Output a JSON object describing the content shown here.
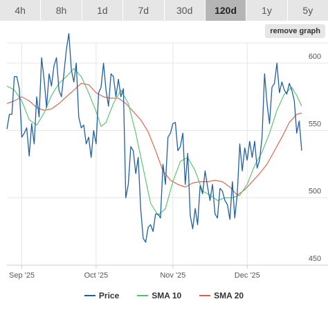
{
  "range_tabs": [
    {
      "label": "4h",
      "active": false
    },
    {
      "label": "8h",
      "active": false
    },
    {
      "label": "1d",
      "active": false
    },
    {
      "label": "7d",
      "active": false
    },
    {
      "label": "30d",
      "active": false
    },
    {
      "label": "120d",
      "active": true
    },
    {
      "label": "1y",
      "active": false
    },
    {
      "label": "5y",
      "active": false
    }
  ],
  "remove_graph_label": "remove graph",
  "chart_data": {
    "type": "line",
    "x_start": "2025-08-26",
    "x_end": "2025-12-23",
    "x_ticks": [
      {
        "date": "2025-09-01",
        "label": "Sep '25"
      },
      {
        "date": "2025-10-01",
        "label": "Oct '25"
      },
      {
        "date": "2025-11-01",
        "label": "Nov '25"
      },
      {
        "date": "2025-12-01",
        "label": "Dec '25"
      }
    ],
    "ylim": [
      450,
      615
    ],
    "y_ticks": [
      450,
      500,
      550,
      600
    ],
    "grid": true,
    "legend": "bottom",
    "series": [
      {
        "name": "Price",
        "color": "#1f5fa0",
        "points": [
          [
            "2025-08-26",
            551
          ],
          [
            "2025-08-27",
            562
          ],
          [
            "2025-08-28",
            562
          ],
          [
            "2025-08-29",
            590
          ],
          [
            "2025-08-30",
            590
          ],
          [
            "2025-08-31",
            581
          ],
          [
            "2025-09-01",
            545
          ],
          [
            "2025-09-02",
            548
          ],
          [
            "2025-09-03",
            552
          ],
          [
            "2025-09-04",
            531
          ],
          [
            "2025-09-05",
            555
          ],
          [
            "2025-09-06",
            540
          ],
          [
            "2025-09-07",
            575
          ],
          [
            "2025-09-08",
            560
          ],
          [
            "2025-09-09",
            604
          ],
          [
            "2025-09-10",
            588
          ],
          [
            "2025-09-11",
            567
          ],
          [
            "2025-09-12",
            592
          ],
          [
            "2025-09-13",
            583
          ],
          [
            "2025-09-14",
            598
          ],
          [
            "2025-09-15",
            604
          ],
          [
            "2025-09-16",
            580
          ],
          [
            "2025-09-17",
            575
          ],
          [
            "2025-09-18",
            592
          ],
          [
            "2025-09-19",
            610
          ],
          [
            "2025-09-20",
            622
          ],
          [
            "2025-09-21",
            595
          ],
          [
            "2025-09-22",
            586
          ],
          [
            "2025-09-23",
            600
          ],
          [
            "2025-09-24",
            560
          ],
          [
            "2025-09-25",
            552
          ],
          [
            "2025-09-26",
            554
          ],
          [
            "2025-09-27",
            540
          ],
          [
            "2025-09-28",
            545
          ],
          [
            "2025-09-29",
            530
          ],
          [
            "2025-09-30",
            550
          ],
          [
            "2025-10-01",
            540
          ],
          [
            "2025-10-02",
            578
          ],
          [
            "2025-10-03",
            582
          ],
          [
            "2025-10-04",
            600
          ],
          [
            "2025-10-05",
            580
          ],
          [
            "2025-10-06",
            568
          ],
          [
            "2025-10-07",
            592
          ],
          [
            "2025-10-08",
            590
          ],
          [
            "2025-10-09",
            575
          ],
          [
            "2025-10-10",
            588
          ],
          [
            "2025-10-11",
            575
          ],
          [
            "2025-10-12",
            581
          ],
          [
            "2025-10-13",
            500
          ],
          [
            "2025-10-14",
            510
          ],
          [
            "2025-10-15",
            538
          ],
          [
            "2025-10-16",
            535
          ],
          [
            "2025-10-17",
            518
          ],
          [
            "2025-10-18",
            530
          ],
          [
            "2025-10-19",
            492
          ],
          [
            "2025-10-20",
            470
          ],
          [
            "2025-10-21",
            467
          ],
          [
            "2025-10-22",
            478
          ],
          [
            "2025-10-23",
            480
          ],
          [
            "2025-10-24",
            475
          ],
          [
            "2025-10-25",
            488
          ],
          [
            "2025-10-26",
            488
          ],
          [
            "2025-10-27",
            485
          ],
          [
            "2025-10-28",
            525
          ],
          [
            "2025-10-29",
            510
          ],
          [
            "2025-10-30",
            545
          ],
          [
            "2025-10-31",
            548
          ],
          [
            "2025-11-01",
            555
          ],
          [
            "2025-11-02",
            556
          ],
          [
            "2025-11-03",
            535
          ],
          [
            "2025-11-04",
            538
          ],
          [
            "2025-11-05",
            548
          ],
          [
            "2025-11-06",
            510
          ],
          [
            "2025-11-07",
            533
          ],
          [
            "2025-11-08",
            487
          ],
          [
            "2025-11-09",
            477
          ],
          [
            "2025-11-10",
            492
          ],
          [
            "2025-11-11",
            480
          ],
          [
            "2025-11-12",
            509
          ],
          [
            "2025-11-13",
            503
          ],
          [
            "2025-11-14",
            520
          ],
          [
            "2025-11-15",
            508
          ],
          [
            "2025-11-16",
            498
          ],
          [
            "2025-11-17",
            510
          ],
          [
            "2025-11-18",
            488
          ],
          [
            "2025-11-19",
            485
          ],
          [
            "2025-11-20",
            507
          ],
          [
            "2025-11-21",
            505
          ],
          [
            "2025-11-22",
            498
          ],
          [
            "2025-11-23",
            495
          ],
          [
            "2025-11-24",
            484
          ],
          [
            "2025-11-25",
            512
          ],
          [
            "2025-11-26",
            485
          ],
          [
            "2025-11-27",
            503
          ],
          [
            "2025-11-28",
            540
          ],
          [
            "2025-11-29",
            520
          ],
          [
            "2025-11-30",
            537
          ],
          [
            "2025-12-01",
            528
          ],
          [
            "2025-12-02",
            542
          ],
          [
            "2025-12-03",
            530
          ],
          [
            "2025-12-04",
            542
          ],
          [
            "2025-12-05",
            522
          ],
          [
            "2025-12-06",
            528
          ],
          [
            "2025-12-07",
            545
          ],
          [
            "2025-12-08",
            592
          ],
          [
            "2025-12-09",
            570
          ],
          [
            "2025-12-10",
            555
          ],
          [
            "2025-12-11",
            582
          ],
          [
            "2025-12-12",
            585
          ],
          [
            "2025-12-13",
            600
          ],
          [
            "2025-12-14",
            578
          ],
          [
            "2025-12-15",
            586
          ],
          [
            "2025-12-16",
            580
          ],
          [
            "2025-12-17",
            577
          ],
          [
            "2025-12-18",
            585
          ],
          [
            "2025-12-19",
            580
          ],
          [
            "2025-12-20",
            572
          ],
          [
            "2025-12-21",
            548
          ],
          [
            "2025-12-22",
            557
          ],
          [
            "2025-12-23",
            535
          ]
        ]
      },
      {
        "name": "SMA 10",
        "color": "#52c06a",
        "points": [
          [
            "2025-08-26",
            583
          ],
          [
            "2025-08-29",
            580
          ],
          [
            "2025-09-01",
            572
          ],
          [
            "2025-09-04",
            558
          ],
          [
            "2025-09-07",
            554
          ],
          [
            "2025-09-10",
            563
          ],
          [
            "2025-09-13",
            576
          ],
          [
            "2025-09-16",
            585
          ],
          [
            "2025-09-19",
            590
          ],
          [
            "2025-09-22",
            596
          ],
          [
            "2025-09-25",
            590
          ],
          [
            "2025-09-28",
            578
          ],
          [
            "2025-10-01",
            564
          ],
          [
            "2025-10-03",
            553
          ],
          [
            "2025-10-05",
            556
          ],
          [
            "2025-10-08",
            570
          ],
          [
            "2025-10-11",
            580
          ],
          [
            "2025-10-14",
            570
          ],
          [
            "2025-10-17",
            548
          ],
          [
            "2025-10-20",
            522
          ],
          [
            "2025-10-23",
            496
          ],
          [
            "2025-10-26",
            487
          ],
          [
            "2025-10-29",
            492
          ],
          [
            "2025-11-01",
            512
          ],
          [
            "2025-11-04",
            527
          ],
          [
            "2025-11-07",
            530
          ],
          [
            "2025-11-10",
            520
          ],
          [
            "2025-11-13",
            505
          ],
          [
            "2025-11-16",
            502
          ],
          [
            "2025-11-19",
            498
          ],
          [
            "2025-11-22",
            500
          ],
          [
            "2025-11-25",
            500
          ],
          [
            "2025-11-28",
            502
          ],
          [
            "2025-12-01",
            510
          ],
          [
            "2025-12-04",
            524
          ],
          [
            "2025-12-07",
            534
          ],
          [
            "2025-12-10",
            548
          ],
          [
            "2025-12-13",
            565
          ],
          [
            "2025-12-16",
            577
          ],
          [
            "2025-12-19",
            582
          ],
          [
            "2025-12-21",
            576
          ],
          [
            "2025-12-23",
            568
          ]
        ]
      },
      {
        "name": "SMA 20",
        "color": "#e25a45",
        "points": [
          [
            "2025-08-26",
            570
          ],
          [
            "2025-08-29",
            572
          ],
          [
            "2025-09-01",
            575
          ],
          [
            "2025-09-04",
            572
          ],
          [
            "2025-09-07",
            567
          ],
          [
            "2025-09-10",
            565
          ],
          [
            "2025-09-13",
            566
          ],
          [
            "2025-09-16",
            570
          ],
          [
            "2025-09-19",
            575
          ],
          [
            "2025-09-22",
            580
          ],
          [
            "2025-09-25",
            585
          ],
          [
            "2025-09-28",
            584
          ],
          [
            "2025-10-01",
            578
          ],
          [
            "2025-10-04",
            575
          ],
          [
            "2025-10-07",
            574
          ],
          [
            "2025-10-10",
            574
          ],
          [
            "2025-10-13",
            570
          ],
          [
            "2025-10-16",
            564
          ],
          [
            "2025-10-19",
            558
          ],
          [
            "2025-10-22",
            549
          ],
          [
            "2025-10-25",
            535
          ],
          [
            "2025-10-28",
            520
          ],
          [
            "2025-10-31",
            513
          ],
          [
            "2025-11-03",
            510
          ],
          [
            "2025-11-06",
            508
          ],
          [
            "2025-11-09",
            511
          ],
          [
            "2025-11-12",
            512
          ],
          [
            "2025-11-15",
            512
          ],
          [
            "2025-11-18",
            513
          ],
          [
            "2025-11-21",
            512
          ],
          [
            "2025-11-24",
            508
          ],
          [
            "2025-11-27",
            502
          ],
          [
            "2025-11-30",
            506
          ],
          [
            "2025-12-03",
            512
          ],
          [
            "2025-12-06",
            518
          ],
          [
            "2025-12-09",
            525
          ],
          [
            "2025-12-12",
            535
          ],
          [
            "2025-12-15",
            545
          ],
          [
            "2025-12-18",
            556
          ],
          [
            "2025-12-21",
            562
          ],
          [
            "2025-12-23",
            563
          ]
        ]
      }
    ]
  }
}
